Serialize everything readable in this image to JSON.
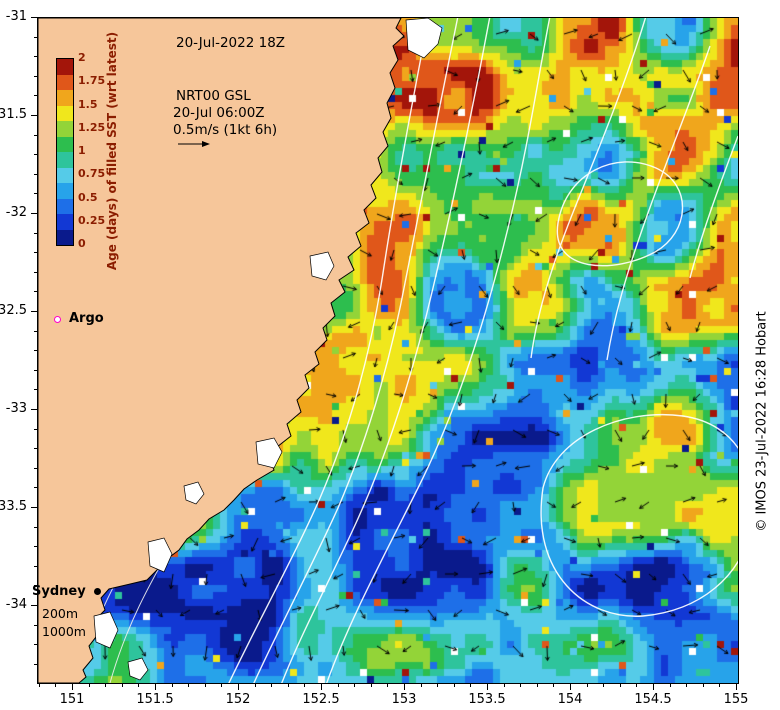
{
  "figure": {
    "datetime_label": "20-Jul-2022 18Z",
    "product_label": "NRT00 GSL",
    "product_time": "20-Jul 06:00Z",
    "vector_scale": "0.5m/s (1kt 6h)",
    "credit": "© IMOS 23-Jul-2022 16:28 Hobart"
  },
  "colorbar": {
    "title": "Age (days) of filled SST (wrt latest)",
    "tick_labels": [
      "2",
      "1.75",
      "1.5",
      "1.25",
      "1",
      "0.75",
      "0.5",
      "0.25",
      "0"
    ],
    "text_color": "#8b1d00",
    "palette_low_to_high": [
      "#0a1a8c",
      "#1238d4",
      "#1e6fe8",
      "#27a3ea",
      "#55cbe8",
      "#2ec49c",
      "#2dbe4e",
      "#93d438",
      "#f0e71c",
      "#f0a61c",
      "#e0571a",
      "#a3150a"
    ]
  },
  "map": {
    "land_color": "#f6c69a",
    "argo_label": "Argo",
    "argo_marker_color": "#ff00cc",
    "sydney_label": "Sydney",
    "depth_labels": [
      "200m",
      "1000m"
    ]
  },
  "axes": {
    "x_tick_labels": [
      "151",
      "151.5",
      "152",
      "152.5",
      "153",
      "153.5",
      "154",
      "154.5",
      "155"
    ],
    "y_tick_labels": [
      "-31",
      "-31.5",
      "-32",
      "-32.5",
      "-33",
      "-33.5",
      "-34"
    ]
  },
  "chart_data": {
    "type": "heatmap",
    "title": "Age (days) of filled SST (wrt latest)",
    "x_ticks": [
      151,
      151.5,
      152,
      152.5,
      153,
      153.5,
      154,
      154.5,
      155
    ],
    "x_range": [
      150.79,
      155.01
    ],
    "y_ticks": [
      -31,
      -31.5,
      -32,
      -32.5,
      -33,
      -33.5,
      -34
    ],
    "y_range": [
      -34.39,
      -31.0
    ],
    "colorbar_ticks": [
      0,
      0.25,
      0.5,
      0.75,
      1,
      1.25,
      1.5,
      1.75,
      2
    ],
    "value_range": [
      0,
      2
    ],
    "overlays": [
      "white GSL contour lines",
      "black current vector arrows",
      "land mask with coastline",
      "200m and 1000m isobaths",
      "Argo float marker",
      "Sydney location marker"
    ]
  }
}
